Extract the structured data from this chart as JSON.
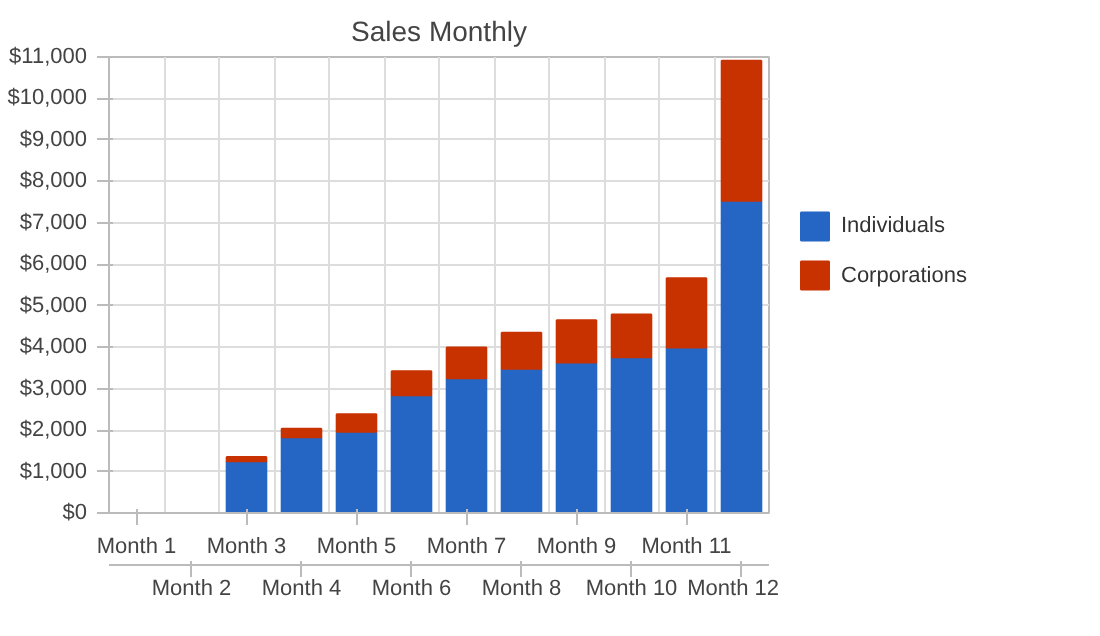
{
  "chart_data": {
    "type": "bar",
    "title": "Sales Monthly",
    "stacked": true,
    "categories": [
      "Month 1",
      "Month 2",
      "Month 3",
      "Month 4",
      "Month 5",
      "Month 6",
      "Month 7",
      "Month 8",
      "Month 9",
      "Month 10",
      "Month 11",
      "Month 12"
    ],
    "series": [
      {
        "name": "Individuals",
        "color": "#2566c4",
        "values": [
          0,
          0,
          1250,
          1830,
          1960,
          2840,
          3250,
          3480,
          3630,
          3760,
          3990,
          7530
        ]
      },
      {
        "name": "Corporations",
        "color": "#c83200",
        "values": [
          0,
          0,
          100,
          200,
          420,
          580,
          740,
          870,
          1020,
          1030,
          1670,
          3380
        ]
      }
    ],
    "ylim": [
      0,
      11000
    ],
    "yticks": [
      {
        "value": 0,
        "label": "$0"
      },
      {
        "value": 1000,
        "label": "$1,000"
      },
      {
        "value": 2000,
        "label": "$2,000"
      },
      {
        "value": 3000,
        "label": "$3,000"
      },
      {
        "value": 4000,
        "label": "$4,000"
      },
      {
        "value": 5000,
        "label": "$5,000"
      },
      {
        "value": 6000,
        "label": "$6,000"
      },
      {
        "value": 7000,
        "label": "$7,000"
      },
      {
        "value": 8000,
        "label": "$8,000"
      },
      {
        "value": 9000,
        "label": "$9,000"
      },
      {
        "value": 10000,
        "label": "$10,000"
      },
      {
        "value": 11000,
        "label": "$11,000"
      }
    ],
    "grid": true,
    "legend": "right"
  }
}
